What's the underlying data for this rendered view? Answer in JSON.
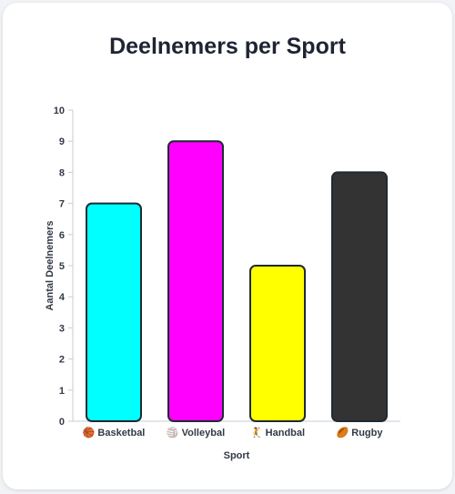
{
  "chart_data": {
    "type": "bar",
    "title": "Deelnemers per Sport",
    "xlabel": "Sport",
    "ylabel": "Aantal Deelnemers",
    "categories": [
      "Basketbal",
      "Volleybal",
      "Handbal",
      "Rugby"
    ],
    "category_icons": [
      "🏀",
      "🏐",
      "🤾",
      "🏉"
    ],
    "values": [
      7,
      9,
      5,
      8
    ],
    "colors": [
      "#00ffff",
      "#ff00ff",
      "#ffff00",
      "#333333"
    ],
    "border_color": "#1f2a33",
    "ylim": [
      0,
      10
    ],
    "yticks": [
      "0",
      "1",
      "2",
      "3",
      "4",
      "5",
      "6",
      "7",
      "8",
      "9",
      "10"
    ],
    "grid": false,
    "legend": "none"
  }
}
